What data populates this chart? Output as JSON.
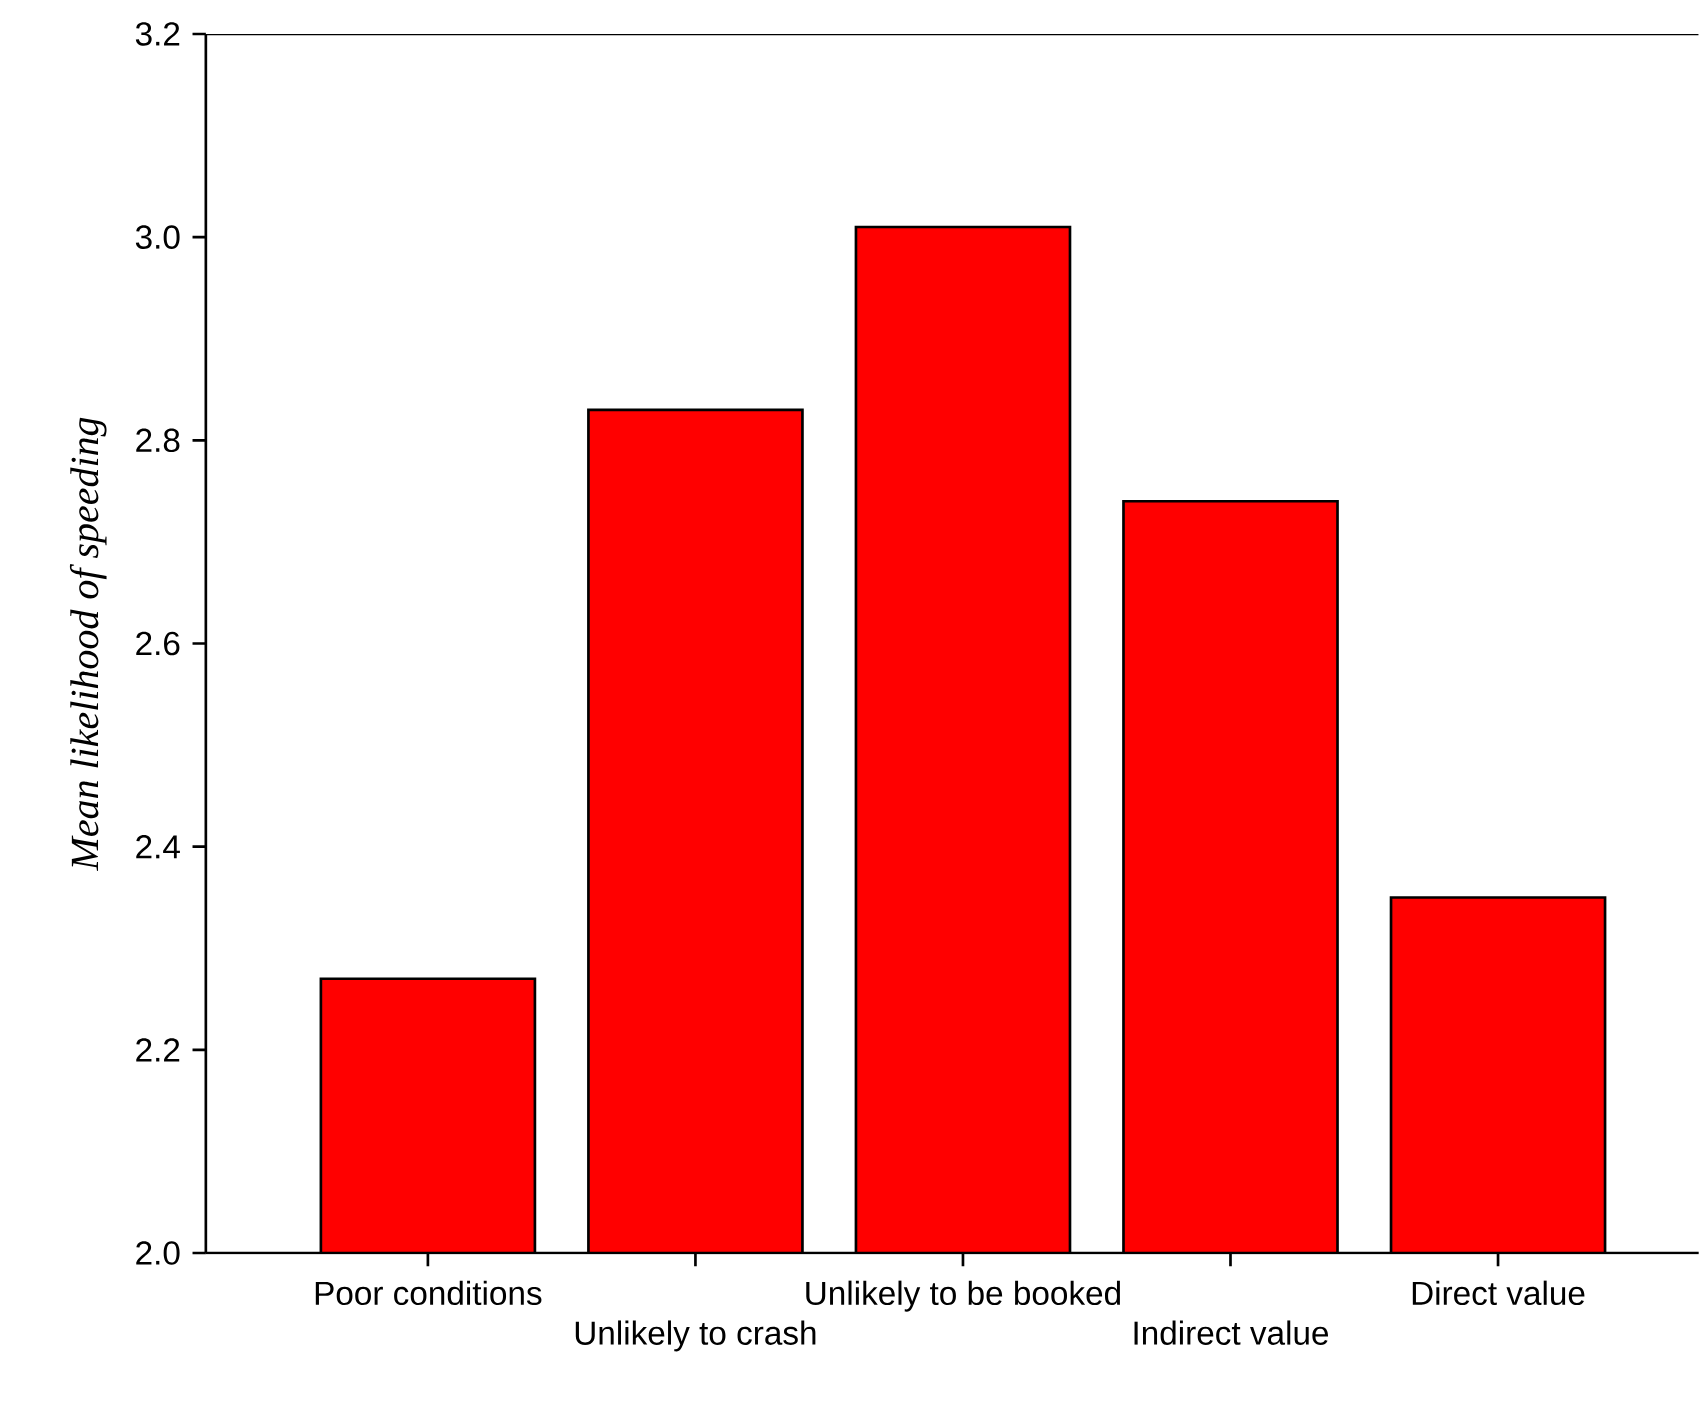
{
  "chart_data": {
    "type": "bar",
    "ylabel": "Mean likelihood of speeding",
    "categories": [
      "Poor conditions",
      "Unlikely to crash",
      "Unlikely to be booked",
      "Indirect value",
      "Direct value"
    ],
    "values": [
      2.27,
      2.83,
      3.01,
      2.74,
      2.35
    ],
    "color": "#ff0000",
    "ylim": [
      2.0,
      3.2
    ],
    "yticks": [
      {
        "value": 2.0,
        "label": "2.0"
      },
      {
        "value": 2.2,
        "label": "2.2"
      },
      {
        "value": 2.4,
        "label": "2.4"
      },
      {
        "value": 2.6,
        "label": "2.6"
      },
      {
        "value": 2.8,
        "label": "2.8"
      },
      {
        "value": 3.0,
        "label": "3.0"
      },
      {
        "value": 3.2,
        "label": "3.2"
      }
    ]
  }
}
